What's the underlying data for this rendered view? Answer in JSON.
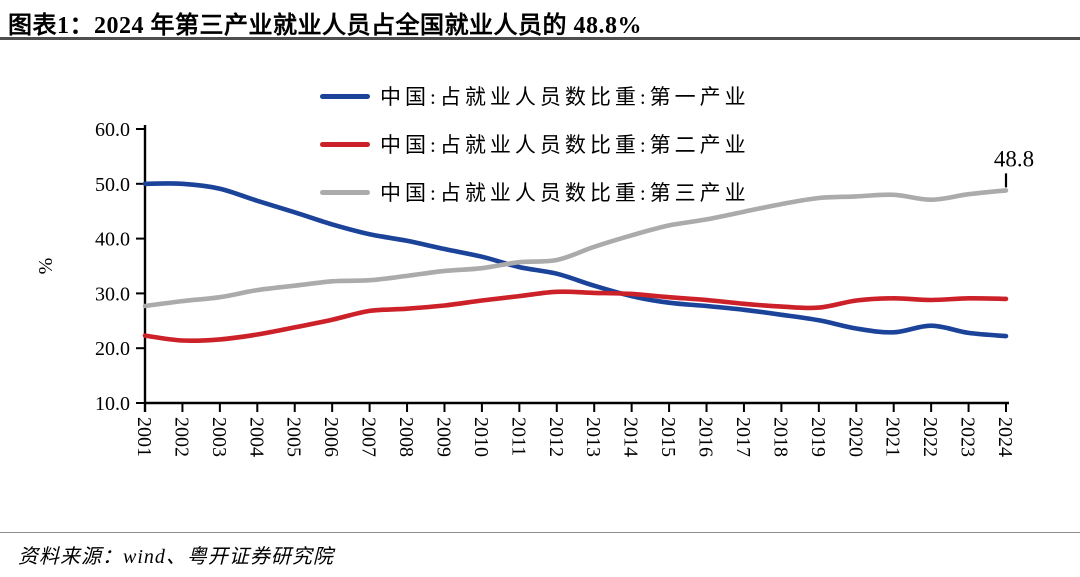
{
  "header": {
    "title": "图表1：2024 年第三产业就业人员占全国就业人员的 48.8%"
  },
  "footer": {
    "source": "资料来源：wind、粤开证券研究院"
  },
  "chart_data": {
    "type": "line",
    "title": "",
    "xlabel": "",
    "ylabel": "%",
    "ylim": [
      10,
      60
    ],
    "yticks": [
      10,
      20,
      30,
      40,
      50,
      60
    ],
    "grid": false,
    "legend_position": "top-center",
    "x": [
      2001,
      2002,
      2003,
      2004,
      2005,
      2006,
      2007,
      2008,
      2009,
      2010,
      2011,
      2012,
      2013,
      2014,
      2015,
      2016,
      2017,
      2018,
      2019,
      2020,
      2021,
      2022,
      2023,
      2024
    ],
    "series": [
      {
        "name": "中国:占就业人员数比重:第一产业",
        "color": "#1B4399",
        "values": [
          50.0,
          50.0,
          49.1,
          46.9,
          44.8,
          42.6,
          40.8,
          39.6,
          38.1,
          36.7,
          34.8,
          33.6,
          31.4,
          29.5,
          28.3,
          27.7,
          27.0,
          26.1,
          25.1,
          23.6,
          22.9,
          24.1,
          22.8,
          22.2
        ]
      },
      {
        "name": "中国:占就业人员数比重:第二产业",
        "color": "#CD2129",
        "values": [
          22.3,
          21.4,
          21.6,
          22.5,
          23.8,
          25.2,
          26.8,
          27.2,
          27.8,
          28.7,
          29.5,
          30.3,
          30.1,
          29.9,
          29.3,
          28.8,
          28.1,
          27.6,
          27.4,
          28.7,
          29.1,
          28.8,
          29.1,
          29.0
        ]
      },
      {
        "name": "中国:占就业人员数比重:第三产业",
        "color": "#ABABAB",
        "values": [
          27.7,
          28.6,
          29.3,
          30.6,
          31.4,
          32.2,
          32.4,
          33.2,
          34.1,
          34.6,
          35.7,
          36.1,
          38.5,
          40.6,
          42.4,
          43.5,
          44.9,
          46.3,
          47.4,
          47.7,
          48.0,
          47.1,
          48.1,
          48.8
        ]
      }
    ],
    "annotation": {
      "text": "48.8",
      "x": 2024,
      "y": 48.8
    }
  }
}
